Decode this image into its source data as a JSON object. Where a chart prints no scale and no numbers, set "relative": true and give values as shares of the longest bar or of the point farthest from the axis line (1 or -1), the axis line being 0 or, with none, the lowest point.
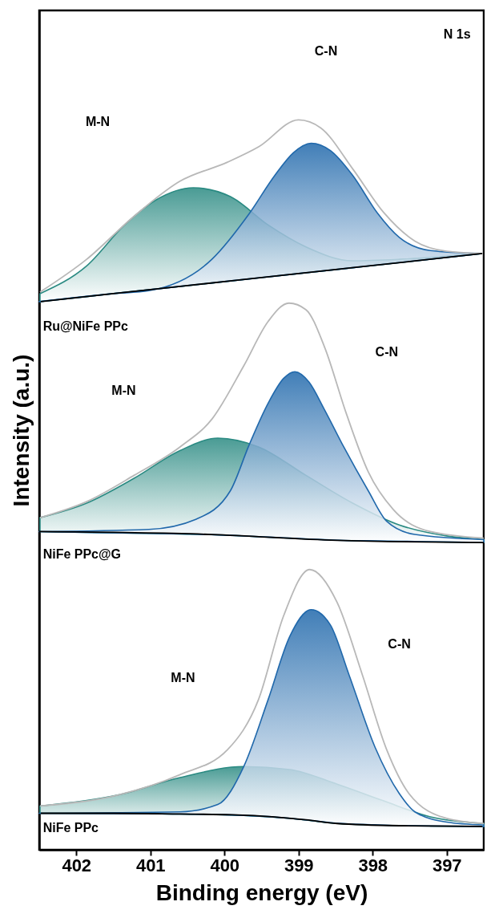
{
  "chart_data": {
    "type": "area",
    "relative": true,
    "xlabel": "Binding energy (eV)",
    "ylabel": "Intensity (a.u.)",
    "xlim": [
      402.5,
      396.5
    ],
    "xticks": [
      402,
      401,
      400,
      399,
      398,
      397
    ],
    "tick_labels": "x",
    "series": [
      {
        "color": "#2a8a82",
        "x": [
          402.49,
          401.86,
          401.35,
          400.93,
          400.42,
          399.92,
          399.41,
          398.9,
          398.27,
          397.64,
          396.55
        ],
        "values": [
          0.762,
          0.8,
          0.856,
          0.89,
          0.907,
          0.895,
          0.856,
          0.826,
          0.807,
          0.809,
          0.817
        ]
      },
      {
        "color": "#2068ab",
        "x": [
          402.5,
          401.5,
          401.02,
          400.17,
          399.67,
          399.32,
          399.07,
          398.83,
          398.57,
          398.27,
          397.94,
          397.64,
          397.22,
          396.55
        ],
        "values": [
          0.751,
          0.762,
          0.766,
          0.809,
          0.871,
          0.924,
          0.955,
          0.968,
          0.958,
          0.924,
          0.873,
          0.839,
          0.821,
          0.817
        ]
      },
      {
        "type": "line",
        "color": "#b8b8b8",
        "x": [
          402.49,
          401.86,
          401.22,
          400.6,
          399.96,
          399.54,
          399.0,
          398.7,
          398.27,
          397.85,
          397.43,
          397.0,
          396.55
        ],
        "values": [
          0.764,
          0.809,
          0.868,
          0.916,
          0.942,
          0.963,
          1.0,
          0.989,
          0.933,
          0.873,
          0.834,
          0.82,
          0.817
        ]
      },
      {
        "type": "line",
        "color": "#000000",
        "x": [
          402.48,
          401.5,
          400.5,
          399.5,
          398.5,
          397.5,
          396.52
        ],
        "values": [
          0.751,
          0.762,
          0.773,
          0.784,
          0.795,
          0.806,
          0.817
        ]
      },
      {
        "color": "#2a8a82",
        "x": [
          402.49,
          401.86,
          401.22,
          400.6,
          400.09,
          399.54,
          398.9,
          398.27,
          397.64,
          397.0,
          396.5
        ],
        "values": [
          0.455,
          0.475,
          0.509,
          0.547,
          0.564,
          0.552,
          0.513,
          0.475,
          0.445,
          0.43,
          0.425
        ]
      },
      {
        "color": "#2068ab",
        "x": [
          402.5,
          401.02,
          400.38,
          399.92,
          399.67,
          399.41,
          399.2,
          399.05,
          398.86,
          398.65,
          398.39,
          398.06,
          397.81,
          397.43,
          396.5
        ],
        "values": [
          0.436,
          0.439,
          0.453,
          0.492,
          0.554,
          0.612,
          0.646,
          0.655,
          0.641,
          0.603,
          0.552,
          0.492,
          0.45,
          0.432,
          0.425
        ]
      },
      {
        "type": "line",
        "color": "#b8b8b8",
        "x": [
          402.49,
          401.86,
          401.22,
          400.6,
          400.17,
          399.74,
          399.41,
          399.13,
          398.9,
          398.65,
          398.36,
          398.06,
          397.72,
          397.22,
          396.5
        ],
        "values": [
          0.455,
          0.477,
          0.513,
          0.552,
          0.59,
          0.663,
          0.724,
          0.749,
          0.74,
          0.689,
          0.599,
          0.518,
          0.466,
          0.436,
          0.427
        ]
      },
      {
        "type": "line",
        "color": "#000000",
        "x": [
          402.5,
          400.17,
          398.48,
          396.5
        ],
        "values": [
          0.436,
          0.432,
          0.424,
          0.421
        ]
      },
      {
        "color": "#2a8a82",
        "x": [
          402.49,
          401.44,
          400.6,
          399.74,
          399.12,
          398.48,
          397.85,
          397.22,
          396.5
        ],
        "values": [
          0.06,
          0.075,
          0.099,
          0.114,
          0.11,
          0.09,
          0.067,
          0.045,
          0.036
        ]
      },
      {
        "color": "#2068ab",
        "x": [
          402.5,
          400.6,
          400.09,
          399.74,
          399.41,
          399.12,
          398.83,
          398.57,
          398.32,
          397.97,
          397.64,
          397.43,
          397.0,
          396.5
        ],
        "values": [
          0.05,
          0.052,
          0.062,
          0.114,
          0.206,
          0.292,
          0.329,
          0.308,
          0.24,
          0.141,
          0.077,
          0.052,
          0.038,
          0.034
        ]
      },
      {
        "type": "line",
        "color": "#b8b8b8",
        "x": [
          402.49,
          401.44,
          400.6,
          399.96,
          399.54,
          399.2,
          398.85,
          398.48,
          398.14,
          397.81,
          397.51,
          397.0,
          396.5
        ],
        "values": [
          0.06,
          0.075,
          0.103,
          0.137,
          0.206,
          0.321,
          0.384,
          0.339,
          0.24,
          0.137,
          0.077,
          0.043,
          0.036
        ]
      },
      {
        "type": "line",
        "color": "#000000",
        "x": [
          402.48,
          401.5,
          400.6,
          399.9,
          399.32,
          398.9,
          398.48,
          397.64,
          396.52
        ],
        "values": [
          0.05,
          0.05,
          0.049,
          0.048,
          0.045,
          0.041,
          0.036,
          0.033,
          0.032
        ]
      }
    ],
    "annotations": [
      "N 1s",
      "M-N",
      "C-N",
      "Ru@NiFe PPc",
      "M-N",
      "C-N",
      "NiFe PPc@G",
      "M-N",
      "C-N",
      "NiFe PPc"
    ]
  }
}
